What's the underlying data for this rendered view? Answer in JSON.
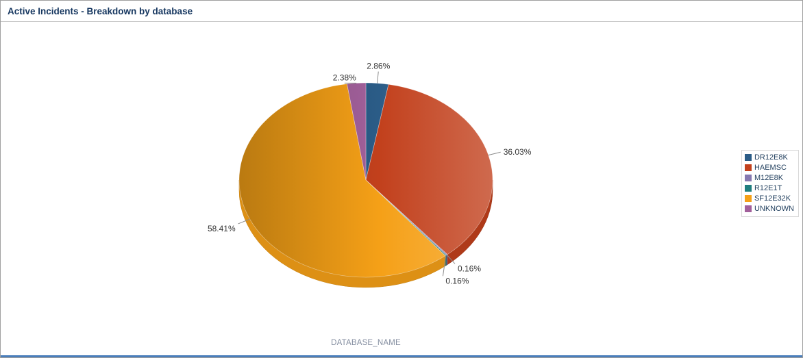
{
  "chart_data": {
    "type": "pie",
    "title": "Active Incidents - Breakdown by database",
    "xlabel": "DATABASE_NAME",
    "legend_position": "right",
    "label_format": "percent",
    "slices": [
      {
        "label": "DR12E8K",
        "value": 2.86,
        "color": "#2b5c87"
      },
      {
        "label": "HAEMSC",
        "value": 36.03,
        "color": "#c2401c"
      },
      {
        "label": "M12E8K",
        "value": 0.16,
        "color": "#8679b0"
      },
      {
        "label": "R12E1T",
        "value": 0.16,
        "color": "#1f7e7e"
      },
      {
        "label": "SF12E32K",
        "value": 58.41,
        "color": "#f5a017"
      },
      {
        "label": "UNKNOWN",
        "value": 2.38,
        "color": "#a2609b"
      }
    ]
  },
  "colors": {
    "title": "#15365f",
    "label_text": "#333333",
    "leader_line": "#8a8a8a",
    "axis_label": "#848ea0",
    "legend_text": "#1f3d5c",
    "bottom_bar": "#4a7ebb",
    "border": "#9f9f9f",
    "separator": "#c6c6c6"
  }
}
